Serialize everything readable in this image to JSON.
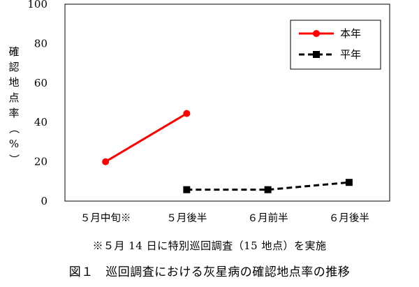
{
  "chart_data": {
    "type": "line",
    "categories": [
      "５月中旬※",
      "５月後半",
      "６月前半",
      "６月後半"
    ],
    "ylabel": "確認地点率（%）",
    "ylim": [
      0,
      100
    ],
    "yticks": [
      0,
      20,
      40,
      60,
      80,
      100
    ],
    "grid": false,
    "legend_position": "top-right",
    "series": [
      {
        "name": "本年",
        "color": "#ff0000",
        "marker": "circle",
        "line_style": "solid",
        "values": [
          20,
          44.5,
          null,
          null
        ]
      },
      {
        "name": "平年",
        "color": "#000000",
        "marker": "square",
        "line_style": "dashed",
        "values": [
          null,
          5.8,
          5.8,
          9.5
        ]
      }
    ]
  },
  "note": "※５月 14 日に特別巡回調査（15 地点）を実施",
  "caption": "図１　巡回調査における灰星病の確認地点率の推移"
}
